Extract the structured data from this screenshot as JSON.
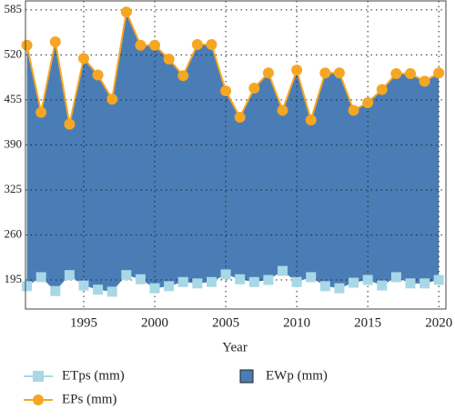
{
  "chart_data": {
    "type": "area_line",
    "x_label": "Year",
    "x": [
      1991,
      1992,
      1993,
      1994,
      1995,
      1996,
      1997,
      1998,
      1999,
      2000,
      2001,
      2002,
      2003,
      2004,
      2005,
      2006,
      2007,
      2008,
      2009,
      2010,
      2011,
      2012,
      2013,
      2014,
      2015,
      2016,
      2017,
      2018,
      2019,
      2020
    ],
    "xlim": [
      1990.9,
      2020.5
    ],
    "xticks": [
      1995,
      2000,
      2005,
      2010,
      2015,
      2020
    ],
    "ylim": [
      153,
      598
    ],
    "yticks": [
      195,
      260,
      325,
      390,
      455,
      520,
      585
    ],
    "grid": true,
    "series": [
      {
        "name": "ETps (mm)",
        "color": "#a8d8e6",
        "marker": "square",
        "values": [
          186,
          199,
          179,
          202,
          187,
          181,
          178,
          202,
          196,
          183,
          186,
          192,
          190,
          192,
          203,
          196,
          192,
          195,
          208,
          192,
          199,
          186,
          183,
          191,
          195,
          187,
          199,
          190,
          190,
          195
        ]
      },
      {
        "name": "EWp (mm)",
        "color": "#4a7db5",
        "marker": "area",
        "values": [
          348,
          238,
          360,
          218,
          328,
          310,
          278,
          380,
          338,
          351,
          328,
          298,
          345,
          343,
          265,
          234,
          280,
          299,
          232,
          306,
          227,
          308,
          311,
          249,
          256,
          283,
          294,
          303,
          292,
          299
        ]
      },
      {
        "name": "EPs (mm)",
        "color": "#f5a623",
        "marker": "circle",
        "values": [
          534,
          437,
          539,
          420,
          515,
          491,
          456,
          582,
          534,
          534,
          514,
          490,
          535,
          535,
          468,
          430,
          472,
          494,
          440,
          498,
          426,
          494,
          494,
          440,
          451,
          470,
          493,
          493,
          482,
          494
        ]
      }
    ]
  }
}
